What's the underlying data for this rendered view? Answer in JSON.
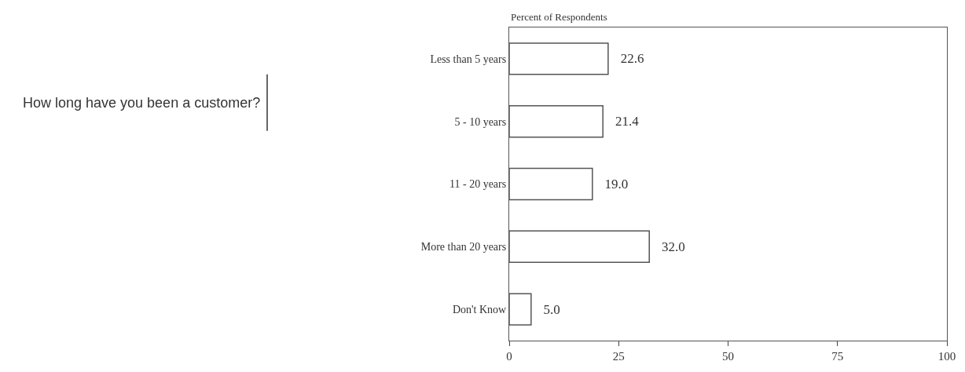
{
  "chart_data": {
    "type": "bar",
    "orientation": "horizontal",
    "title": "How long have you been a customer?",
    "xlabel": "Percent of Respondents",
    "categories": [
      "Less than 5 years",
      "5 - 10 years",
      "11 - 20 years",
      "More than 20 years",
      "Don't Know"
    ],
    "values": [
      22.6,
      21.4,
      19.0,
      32.0,
      5.0
    ],
    "value_labels": [
      "22.6",
      "21.4",
      "19.0",
      "32.0",
      "5.0"
    ],
    "color": "#ffffff",
    "xlim": [
      0,
      100
    ],
    "xticks": [
      0,
      25,
      50,
      75,
      100
    ]
  }
}
